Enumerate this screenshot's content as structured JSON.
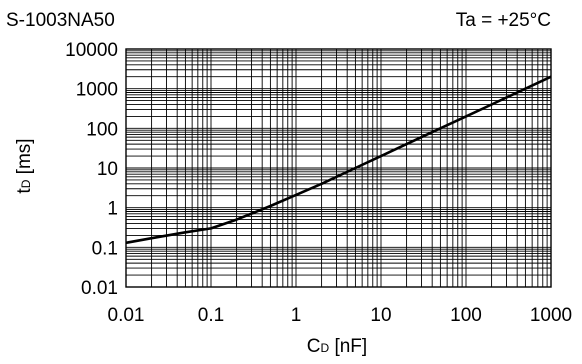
{
  "chart_data": {
    "type": "line",
    "title": "S-1003NA50",
    "condition": "Ta = +25°C",
    "xlabel_main": "C",
    "xlabel_sub": "D",
    "xlabel_unit": " [nF]",
    "ylabel_main": "t",
    "ylabel_sub": "D",
    "ylabel_unit": " [ms]",
    "x_scale": "log",
    "y_scale": "log",
    "xlim": [
      0.01,
      1000
    ],
    "ylim": [
      0.01,
      10000
    ],
    "grid": true,
    "x_ticks": [
      {
        "value": 0.01,
        "label": "0.01"
      },
      {
        "value": 0.1,
        "label": "0.1"
      },
      {
        "value": 1,
        "label": "1"
      },
      {
        "value": 10,
        "label": "10"
      },
      {
        "value": 100,
        "label": "100"
      },
      {
        "value": 1000,
        "label": "1000"
      }
    ],
    "y_ticks": [
      {
        "value": 10000,
        "label": "10000"
      },
      {
        "value": 1000,
        "label": "1000"
      },
      {
        "value": 100,
        "label": "100"
      },
      {
        "value": 10,
        "label": "10"
      },
      {
        "value": 1,
        "label": "1"
      },
      {
        "value": 0.1,
        "label": "0.1"
      },
      {
        "value": 0.01,
        "label": "0.01"
      }
    ],
    "series": [
      {
        "color": "#000000",
        "x": [
          0.01,
          0.02,
          0.05,
          0.1,
          0.2,
          0.5,
          1,
          2,
          5,
          10,
          20,
          50,
          100,
          200,
          500,
          1000
        ],
        "y": [
          0.13,
          0.17,
          0.24,
          0.3,
          0.5,
          1.1,
          2.1,
          4.0,
          10,
          20,
          40,
          100,
          200,
          400,
          1000,
          2000
        ]
      }
    ]
  }
}
